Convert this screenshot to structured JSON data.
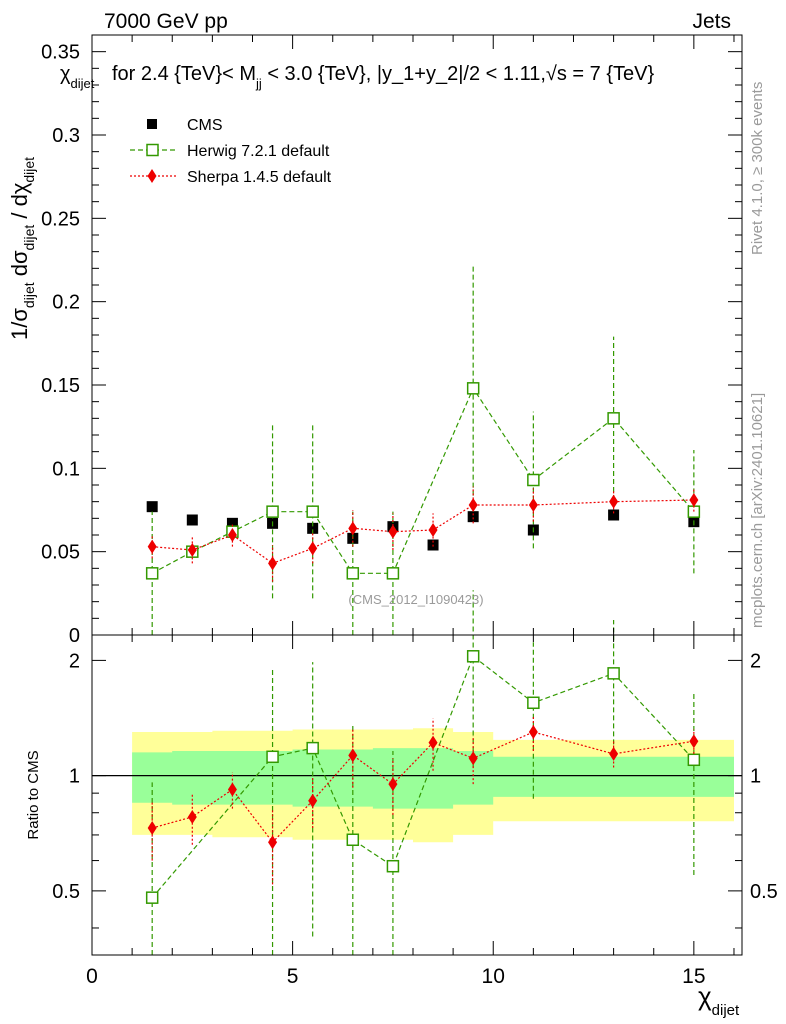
{
  "header": {
    "left": "7000 GeV pp",
    "right": "Jets"
  },
  "side_labels": {
    "rivet": "Rivet 4.1.0, ≥ 300k events",
    "mcplots": "mcplots.cern.ch [arXiv:2401.10621]"
  },
  "chart_data": {
    "type": "scatter",
    "title": "χ_dijet for 2.4 {TeV}< M_jj < 3.0 {TeV}, |y_1+y_2|/2 < 1.11,√s = 7 {TeV}",
    "xlabel": "χ_dijet",
    "ylabel": "1/σ_dijet dσ_dijet / dχ_dijet",
    "ratio_ylabel": "Ratio to CMS",
    "watermark": "(CMS_2012_I1090423)",
    "xlim": [
      0,
      16.2
    ],
    "ylim": [
      0,
      0.36
    ],
    "ratio_ylim": [
      0.34,
      2.33
    ],
    "x_ticks": [
      0,
      5,
      10,
      15
    ],
    "y_ticks": [
      0,
      0.05,
      0.1,
      0.15,
      0.2,
      0.25,
      0.3,
      0.35
    ],
    "y_tick_labels": [
      "0",
      "0.05",
      "0.1",
      "0.15",
      "0.2",
      "0.25",
      "0.3",
      "0.35"
    ],
    "ratio_ticks": [
      0.5,
      1,
      2
    ],
    "ratio_tick_labels": [
      "0.5",
      "1",
      "2"
    ],
    "x": [
      1.5,
      2.5,
      3.5,
      4.5,
      5.5,
      6.5,
      7.5,
      8.5,
      9.5,
      11,
      13,
      15
    ],
    "bin_edges": [
      1,
      2,
      3,
      4,
      5,
      6,
      7,
      8,
      9,
      10,
      12,
      14,
      16
    ],
    "series": [
      {
        "name": "CMS",
        "color": "#000000",
        "marker": "square-filled",
        "values": [
          0.077,
          0.069,
          0.067,
          0.067,
          0.064,
          0.058,
          0.065,
          0.054,
          0.071,
          0.063,
          0.072,
          0.068
        ]
      },
      {
        "name": "Herwig 7.2.1 default",
        "color": "#339900",
        "marker": "square-open",
        "values": [
          0.037,
          0.05,
          0.062,
          0.074,
          0.074,
          0.037,
          0.037,
          null,
          0.148,
          0.093,
          0.13,
          0.074
        ],
        "err": [
          0.037,
          null,
          null,
          0.052,
          0.052,
          0.037,
          0.037,
          null,
          0.074,
          0.041,
          0.049,
          0.037
        ]
      },
      {
        "name": "Sherpa 1.4.5 default",
        "color": "#ee0000",
        "marker": "diamond-filled",
        "values": [
          0.053,
          0.051,
          0.06,
          0.043,
          0.052,
          0.064,
          0.062,
          0.063,
          0.078,
          0.078,
          0.08,
          0.081
        ],
        "err": [
          0.007,
          0.008,
          0.007,
          0.011,
          0.009,
          0.011,
          0.011,
          0.01,
          0.011,
          0.01,
          0.007,
          0.007
        ]
      }
    ],
    "ratio": {
      "herwig": [
        0.48,
        null,
        null,
        1.12,
        1.18,
        0.68,
        0.58,
        null,
        2.05,
        1.55,
        1.85,
        1.1
      ],
      "herwig_err": [
        0.48,
        null,
        null,
        0.78,
        0.8,
        0.68,
        0.58,
        null,
        1.0,
        0.68,
        0.7,
        0.55
      ],
      "sherpa": [
        0.73,
        0.78,
        0.92,
        0.67,
        0.86,
        1.13,
        0.95,
        1.22,
        1.11,
        1.3,
        1.14,
        1.23
      ],
      "sherpa_err": [
        0.13,
        0.12,
        0.1,
        0.15,
        0.13,
        0.2,
        0.16,
        0.19,
        0.16,
        0.14,
        0.09,
        0.09
      ],
      "band_inner": [
        0.15,
        0.16,
        0.16,
        0.16,
        0.17,
        0.17,
        0.18,
        0.18,
        0.16,
        0.12,
        0.12,
        0.12
      ],
      "band_outer": [
        0.3,
        0.3,
        0.31,
        0.31,
        0.32,
        0.32,
        0.32,
        0.33,
        0.3,
        0.24,
        0.24,
        0.24
      ]
    }
  }
}
